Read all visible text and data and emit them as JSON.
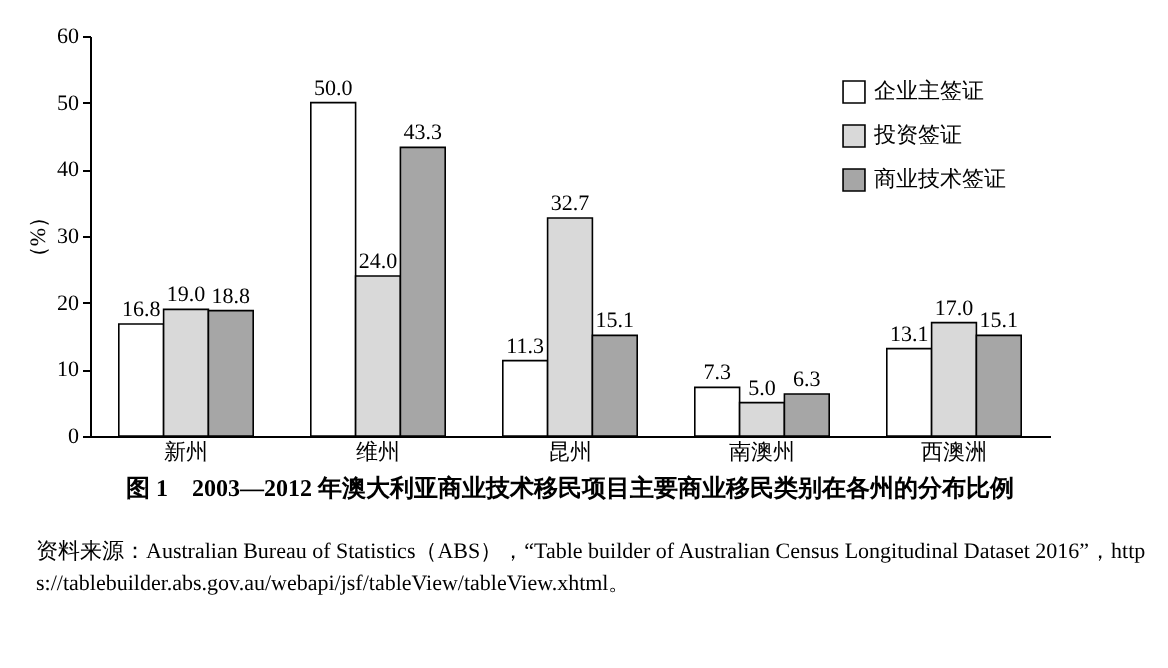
{
  "chart_data": {
    "type": "bar",
    "title": "图 1　2003—2012 年澳大利亚商业技术移民项目主要商业移民类别在各州的分布比例",
    "ylabel": "（%）",
    "categories": [
      "新州",
      "维州",
      "昆州",
      "南澳州",
      "西澳洲"
    ],
    "series": [
      {
        "name": "企业主签证",
        "color": "#ffffff",
        "values": [
          16.8,
          50.0,
          11.3,
          7.3,
          13.1
        ],
        "value_labels": [
          "16.8",
          "50.0",
          "11.3",
          "7.3",
          "13.1"
        ]
      },
      {
        "name": "投资签证",
        "color": "#d9d9d9",
        "values": [
          19.0,
          24.0,
          32.7,
          5.0,
          17.0
        ],
        "value_labels": [
          "19.0",
          "24.0",
          "32.7",
          "5.0",
          "17.0"
        ]
      },
      {
        "name": "商业技术签证",
        "color": "#a6a6a6",
        "values": [
          18.8,
          43.3,
          15.1,
          6.3,
          15.1
        ],
        "value_labels": [
          "18.8",
          "43.3",
          "15.1",
          "6.3",
          "15.1"
        ]
      }
    ],
    "ylim": [
      0,
      60
    ],
    "yticks": [
      0,
      10,
      20,
      30,
      40,
      50,
      60
    ],
    "legend": "top right",
    "grid": false,
    "annotations": [
      "资料来源：Australian Bureau of Statistics（ABS），“Table builder of Australian Census Longitudinal Dataset 2016”，https://tablebuilder.abs.gov.au/webapi/jsf/tableView/tableView.xhtml。"
    ]
  }
}
